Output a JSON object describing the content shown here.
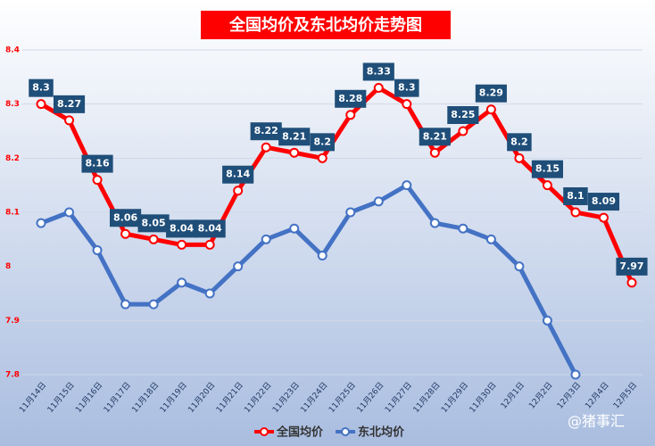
{
  "chart_data": {
    "type": "line",
    "title": "全国均价及东北均价走势图",
    "categories": [
      "11月14日",
      "11月15日",
      "11月16日",
      "11月17日",
      "11月18日",
      "11月19日",
      "11月20日",
      "11月21日",
      "11月22日",
      "11月23日",
      "11月24日",
      "11月25日",
      "11月26日",
      "11月27日",
      "11月28日",
      "11月29日",
      "11月30日",
      "12月1日",
      "12月2日",
      "12月3日",
      "12月4日",
      "12月5日"
    ],
    "series": [
      {
        "name": "全国均价",
        "color": "#ff0000",
        "data_labels": true,
        "values": [
          8.3,
          8.27,
          8.16,
          8.06,
          8.05,
          8.04,
          8.04,
          8.14,
          8.22,
          8.21,
          8.2,
          8.28,
          8.33,
          8.3,
          8.21,
          8.25,
          8.29,
          8.2,
          8.15,
          8.1,
          8.09,
          7.97
        ]
      },
      {
        "name": "东北均价",
        "color": "#4472c4",
        "data_labels": false,
        "values": [
          8.08,
          8.1,
          8.03,
          7.93,
          7.93,
          7.97,
          7.95,
          8.0,
          8.05,
          8.07,
          8.02,
          8.1,
          8.12,
          8.15,
          8.08,
          8.07,
          8.05,
          8.0,
          7.9,
          7.8,
          null,
          null
        ]
      }
    ],
    "ylim": [
      7.8,
      8.4
    ],
    "yticks": [
      7.8,
      7.9,
      8,
      8.1,
      8.2,
      8.3,
      8.4
    ],
    "grid": true,
    "legend": "bottom",
    "watermark": "@猪事汇"
  }
}
